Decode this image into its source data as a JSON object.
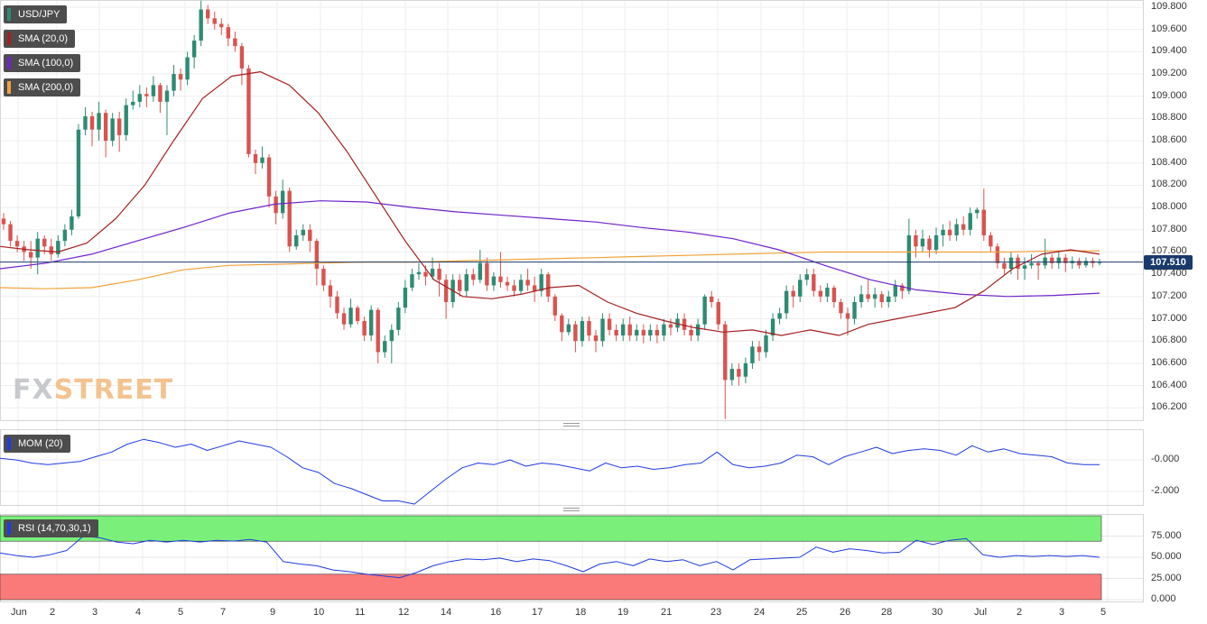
{
  "instrument": "USD/JPY",
  "watermark": {
    "part1": "FX",
    "part2": "STREET"
  },
  "indicators": {
    "sma20": {
      "label": "SMA (20,0)",
      "color": "#a51f1f"
    },
    "sma100": {
      "label": "SMA (100,0)",
      "color": "#6f23c9"
    },
    "sma200": {
      "label": "SMA (200,0)",
      "color": "#f0a13a"
    },
    "mom": {
      "label": "MOM (20)",
      "color": "#1f3be0"
    },
    "rsi": {
      "label": "RSI (14,70,30,1)",
      "color": "#1f3be0"
    }
  },
  "last_price": "107.510",
  "colors": {
    "up": "#2e8b73",
    "down": "#d9534f",
    "price_line": "#1a3a6b",
    "rsi_over": "#7af07a",
    "rsi_under": "#fa7a7a"
  },
  "chart_data": {
    "type": "candlestick",
    "price_axis": {
      "ticks": [
        "109.800",
        "109.600",
        "109.400",
        "109.200",
        "109.000",
        "108.800",
        "108.600",
        "108.400",
        "108.200",
        "108.000",
        "107.800",
        "107.600",
        "107.400",
        "107.200",
        "107.000",
        "106.800",
        "106.600",
        "106.400",
        "106.200"
      ]
    },
    "mom_axis": {
      "ticks": [
        "-0.000",
        "-2.000"
      ]
    },
    "rsi_axis": {
      "ticks": [
        "75.000",
        "50.000",
        "25.000",
        "0.000"
      ]
    },
    "x_labels": [
      "Jun",
      "2",
      "3",
      "4",
      "5",
      "7",
      "9",
      "10",
      "11",
      "12",
      "14",
      "16",
      "17",
      "18",
      "19",
      "21",
      "23",
      "24",
      "25",
      "26",
      "28",
      "30",
      "Jul",
      "2",
      "3",
      "5"
    ],
    "candles": [
      [
        107.9,
        107.85,
        107.95,
        107.8
      ],
      [
        107.85,
        107.7,
        107.88,
        107.65
      ],
      [
        107.7,
        107.65,
        107.75,
        107.6
      ],
      [
        107.65,
        107.6,
        107.7,
        107.52
      ],
      [
        107.6,
        107.55,
        107.7,
        107.45
      ],
      [
        107.55,
        107.72,
        107.78,
        107.4
      ],
      [
        107.72,
        107.65,
        107.75,
        107.58
      ],
      [
        107.65,
        107.58,
        107.72,
        107.52
      ],
      [
        107.58,
        107.7,
        107.75,
        107.55
      ],
      [
        107.7,
        107.8,
        107.85,
        107.65
      ],
      [
        107.8,
        107.92,
        107.98,
        107.75
      ],
      [
        107.92,
        108.7,
        108.75,
        107.9
      ],
      [
        108.7,
        108.82,
        108.9,
        108.65
      ],
      [
        108.82,
        108.7,
        108.86,
        108.55
      ],
      [
        108.7,
        108.85,
        108.95,
        108.6
      ],
      [
        108.85,
        108.6,
        108.88,
        108.45
      ],
      [
        108.6,
        108.8,
        108.85,
        108.55
      ],
      [
        108.8,
        108.65,
        108.86,
        108.5
      ],
      [
        108.65,
        108.92,
        108.98,
        108.6
      ],
      [
        108.92,
        108.95,
        109.05,
        108.88
      ],
      [
        108.95,
        109.02,
        109.1,
        108.9
      ],
      [
        109.02,
        109.0,
        109.08,
        108.9
      ],
      [
        109.0,
        109.1,
        109.18,
        108.95
      ],
      [
        109.1,
        108.95,
        109.12,
        108.85
      ],
      [
        108.95,
        109.05,
        109.1,
        108.65
      ],
      [
        109.05,
        109.2,
        109.28,
        109.0
      ],
      [
        109.2,
        109.15,
        109.25,
        109.05
      ],
      [
        109.15,
        109.35,
        109.4,
        109.1
      ],
      [
        109.35,
        109.5,
        109.55,
        109.25
      ],
      [
        109.5,
        109.78,
        109.86,
        109.45
      ],
      [
        109.78,
        109.7,
        109.82,
        109.65
      ],
      [
        109.7,
        109.65,
        109.76,
        109.6
      ],
      [
        109.65,
        109.62,
        109.7,
        109.55
      ],
      [
        109.62,
        109.52,
        109.65,
        109.45
      ],
      [
        109.52,
        109.45,
        109.58,
        109.4
      ],
      [
        109.45,
        109.25,
        109.48,
        109.1
      ],
      [
        109.25,
        108.48,
        109.28,
        108.45
      ],
      [
        108.48,
        108.4,
        108.52,
        108.3
      ],
      [
        108.4,
        108.45,
        108.55,
        108.35
      ],
      [
        108.45,
        108.1,
        108.48,
        108.0
      ],
      [
        108.1,
        107.95,
        108.15,
        107.85
      ],
      [
        107.95,
        108.15,
        108.25,
        107.9
      ],
      [
        108.15,
        107.65,
        108.18,
        107.6
      ],
      [
        107.65,
        107.75,
        107.8,
        107.62
      ],
      [
        107.75,
        107.8,
        107.85,
        107.7
      ],
      [
        107.8,
        107.7,
        107.85,
        107.6
      ],
      [
        107.7,
        107.45,
        107.72,
        107.3
      ],
      [
        107.45,
        107.3,
        107.48,
        107.25
      ],
      [
        107.3,
        107.2,
        107.35,
        107.1
      ],
      [
        107.2,
        107.05,
        107.25,
        107.0
      ],
      [
        107.05,
        106.95,
        107.1,
        106.9
      ],
      [
        106.95,
        107.1,
        107.18,
        106.92
      ],
      [
        107.1,
        106.98,
        107.12,
        106.95
      ],
      [
        106.98,
        106.85,
        107.02,
        106.8
      ],
      [
        106.85,
        107.08,
        107.12,
        106.8
      ],
      [
        107.08,
        106.7,
        107.1,
        106.6
      ],
      [
        106.7,
        106.8,
        106.85,
        106.65
      ],
      [
        106.8,
        106.9,
        106.95,
        106.6
      ],
      [
        106.9,
        107.1,
        107.15,
        106.85
      ],
      [
        107.1,
        107.28,
        107.35,
        107.05
      ],
      [
        107.28,
        107.4,
        107.45,
        107.25
      ],
      [
        107.4,
        107.42,
        107.5,
        107.35
      ],
      [
        107.42,
        107.38,
        107.48,
        107.3
      ],
      [
        107.38,
        107.45,
        107.55,
        107.35
      ],
      [
        107.45,
        107.35,
        107.5,
        107.2
      ],
      [
        107.35,
        107.15,
        107.4,
        107.0
      ],
      [
        107.15,
        107.35,
        107.4,
        107.1
      ],
      [
        107.35,
        107.25,
        107.4,
        107.2
      ],
      [
        107.25,
        107.4,
        107.45,
        107.2
      ],
      [
        107.4,
        107.35,
        107.45,
        107.3
      ],
      [
        107.35,
        107.5,
        107.62,
        107.32
      ],
      [
        107.5,
        107.3,
        107.55,
        107.25
      ],
      [
        107.3,
        107.38,
        107.42,
        107.25
      ],
      [
        107.38,
        107.33,
        107.6,
        107.28
      ],
      [
        107.33,
        107.3,
        107.38,
        107.25
      ],
      [
        107.3,
        107.25,
        107.35,
        107.2
      ],
      [
        107.25,
        107.35,
        107.4,
        107.22
      ],
      [
        107.35,
        107.3,
        107.45,
        107.25
      ],
      [
        107.3,
        107.25,
        107.38,
        107.15
      ],
      [
        107.25,
        107.4,
        107.45,
        107.2
      ],
      [
        107.4,
        107.2,
        107.42,
        107.15
      ],
      [
        107.2,
        107.03,
        107.22,
        106.98
      ],
      [
        107.03,
        106.88,
        107.05,
        106.8
      ],
      [
        106.88,
        106.95,
        107.0,
        106.85
      ],
      [
        106.95,
        106.8,
        106.98,
        106.7
      ],
      [
        106.8,
        106.98,
        107.02,
        106.75
      ],
      [
        106.98,
        106.85,
        107.02,
        106.8
      ],
      [
        106.85,
        106.8,
        106.9,
        106.7
      ],
      [
        106.8,
        107.0,
        107.05,
        106.75
      ],
      [
        107.0,
        106.9,
        107.05,
        106.85
      ],
      [
        106.9,
        106.85,
        106.95,
        106.8
      ],
      [
        106.85,
        106.95,
        107.0,
        106.8
      ],
      [
        106.95,
        106.85,
        107.02,
        106.8
      ],
      [
        106.85,
        106.9,
        106.95,
        106.8
      ],
      [
        106.9,
        106.85,
        106.95,
        106.78
      ],
      [
        106.85,
        106.9,
        106.95,
        106.8
      ],
      [
        106.9,
        106.85,
        106.95,
        106.78
      ],
      [
        106.85,
        106.95,
        107.0,
        106.8
      ],
      [
        106.95,
        106.92,
        107.0,
        106.85
      ],
      [
        106.92,
        107.0,
        107.05,
        106.88
      ],
      [
        107.0,
        106.9,
        107.05,
        106.85
      ],
      [
        106.9,
        106.85,
        106.95,
        106.8
      ],
      [
        106.85,
        106.95,
        107.0,
        106.8
      ],
      [
        106.95,
        107.2,
        107.22,
        106.9
      ],
      [
        107.2,
        107.15,
        107.25,
        107.1
      ],
      [
        107.15,
        106.95,
        107.18,
        106.9
      ],
      [
        106.95,
        106.45,
        106.98,
        106.1
      ],
      [
        106.45,
        106.55,
        106.6,
        106.4
      ],
      [
        106.55,
        106.48,
        106.6,
        106.4
      ],
      [
        106.48,
        106.6,
        106.65,
        106.42
      ],
      [
        106.6,
        106.75,
        106.8,
        106.55
      ],
      [
        106.75,
        106.7,
        106.8,
        106.62
      ],
      [
        106.7,
        106.85,
        106.9,
        106.65
      ],
      [
        106.85,
        107.0,
        107.05,
        106.8
      ],
      [
        107.0,
        107.05,
        107.1,
        106.95
      ],
      [
        107.05,
        107.25,
        107.3,
        107.0
      ],
      [
        107.25,
        107.2,
        107.3,
        107.1
      ],
      [
        107.2,
        107.35,
        107.4,
        107.15
      ],
      [
        107.35,
        107.4,
        107.45,
        107.3
      ],
      [
        107.4,
        107.25,
        107.45,
        107.2
      ],
      [
        107.25,
        107.2,
        107.3,
        107.15
      ],
      [
        107.2,
        107.28,
        107.32,
        107.15
      ],
      [
        107.28,
        107.15,
        107.3,
        107.1
      ],
      [
        107.15,
        107.05,
        107.18,
        107.0
      ],
      [
        107.05,
        107.0,
        107.1,
        106.85
      ],
      [
        107.0,
        107.15,
        107.2,
        106.95
      ],
      [
        107.15,
        107.22,
        107.3,
        107.1
      ],
      [
        107.22,
        107.18,
        107.35,
        107.15
      ],
      [
        107.18,
        107.22,
        107.28,
        107.1
      ],
      [
        107.22,
        107.15,
        107.25,
        107.1
      ],
      [
        107.15,
        107.2,
        107.25,
        107.1
      ],
      [
        107.2,
        107.3,
        107.35,
        107.15
      ],
      [
        107.3,
        107.25,
        107.32,
        107.18
      ],
      [
        107.25,
        107.75,
        107.9,
        107.22
      ],
      [
        107.75,
        107.65,
        107.8,
        107.55
      ],
      [
        107.65,
        107.72,
        107.8,
        107.6
      ],
      [
        107.72,
        107.62,
        107.75,
        107.55
      ],
      [
        107.62,
        107.75,
        107.82,
        107.58
      ],
      [
        107.75,
        107.8,
        107.85,
        107.65
      ],
      [
        107.8,
        107.75,
        107.88,
        107.7
      ],
      [
        107.75,
        107.85,
        107.9,
        107.7
      ],
      [
        107.85,
        107.8,
        107.92,
        107.75
      ],
      [
        107.8,
        107.95,
        108.0,
        107.75
      ],
      [
        107.95,
        107.98,
        108.0,
        107.9
      ],
      [
        107.98,
        107.75,
        108.17,
        107.7
      ],
      [
        107.75,
        107.65,
        107.78,
        107.6
      ],
      [
        107.65,
        107.5,
        107.68,
        107.45
      ],
      [
        107.5,
        107.45,
        107.55,
        107.4
      ],
      [
        107.45,
        107.55,
        107.6,
        107.4
      ],
      [
        107.55,
        107.45,
        107.58,
        107.35
      ],
      [
        107.45,
        107.48,
        107.55,
        107.35
      ],
      [
        107.48,
        107.5,
        107.58,
        107.45
      ],
      [
        107.5,
        107.48,
        107.52,
        107.35
      ],
      [
        107.48,
        107.55,
        107.72,
        107.45
      ],
      [
        107.55,
        107.5,
        107.58,
        107.45
      ],
      [
        107.5,
        107.55,
        107.6,
        107.45
      ],
      [
        107.55,
        107.5,
        107.58,
        107.42
      ],
      [
        107.5,
        107.52,
        107.56,
        107.45
      ],
      [
        107.52,
        107.48,
        107.55,
        107.45
      ],
      [
        107.48,
        107.52,
        107.55,
        107.46
      ],
      [
        107.52,
        107.5,
        107.55,
        107.46
      ],
      [
        107.5,
        107.51,
        107.54,
        107.48
      ]
    ],
    "sma20": [
      107.65,
      107.62,
      107.6,
      107.68,
      107.9,
      108.2,
      108.6,
      108.98,
      109.18,
      109.22,
      109.1,
      108.85,
      108.5,
      108.1,
      107.7,
      107.35,
      107.2,
      107.18,
      107.22,
      107.28,
      107.3,
      107.15,
      107.05,
      106.98,
      106.92,
      106.88,
      106.9,
      106.85,
      106.9,
      106.85,
      106.95,
      107.0,
      107.05,
      107.1,
      107.25,
      107.45,
      107.58,
      107.62,
      107.58
    ],
    "sma100": [
      107.45,
      107.5,
      107.58,
      107.7,
      107.82,
      107.95,
      108.03,
      108.06,
      108.05,
      108.0,
      107.96,
      107.93,
      107.9,
      107.87,
      107.82,
      107.78,
      107.72,
      107.62,
      107.48,
      107.35,
      107.26,
      107.22,
      107.2,
      107.21,
      107.23
    ],
    "sma200": [
      107.28,
      107.27,
      107.28,
      107.35,
      107.44,
      107.48,
      107.49,
      107.5,
      107.51,
      107.51,
      107.52,
      107.53,
      107.54,
      107.55,
      107.56,
      107.57,
      107.58,
      107.59,
      107.6,
      107.6,
      107.6,
      107.6,
      107.6,
      107.61,
      107.61
    ],
    "mom": [
      0.1,
      0.0,
      -0.2,
      -0.3,
      -0.2,
      -0.1,
      0.2,
      0.5,
      1.0,
      1.3,
      1.1,
      0.8,
      1.0,
      0.6,
      0.9,
      1.2,
      1.0,
      0.8,
      0.2,
      -0.5,
      -0.8,
      -1.5,
      -1.8,
      -2.2,
      -2.6,
      -2.6,
      -2.8,
      -2.0,
      -1.2,
      -0.5,
      -0.2,
      -0.3,
      0.0,
      -0.4,
      -0.2,
      -0.3,
      -0.5,
      -0.7,
      -0.2,
      -0.5,
      -0.4,
      -0.6,
      -0.5,
      -0.3,
      -0.2,
      0.5,
      -0.3,
      -0.5,
      -0.4,
      -0.2,
      0.3,
      0.2,
      -0.3,
      0.2,
      0.5,
      0.8,
      0.4,
      0.6,
      0.7,
      0.6,
      0.3,
      0.9,
      0.5,
      0.7,
      0.4,
      0.3,
      0.2,
      -0.2,
      -0.3,
      -0.3
    ],
    "rsi": [
      55,
      52,
      50,
      53,
      58,
      75,
      73,
      68,
      66,
      70,
      68,
      70,
      68,
      70,
      69,
      71,
      68,
      45,
      42,
      40,
      35,
      33,
      30,
      28,
      26,
      32,
      40,
      45,
      48,
      47,
      49,
      45,
      48,
      46,
      40,
      33,
      42,
      45,
      40,
      48,
      45,
      47,
      40,
      45,
      35,
      47,
      48,
      49,
      50,
      62,
      56,
      60,
      58,
      55,
      56,
      70,
      65,
      70,
      72,
      53,
      50,
      52,
      51,
      52,
      51,
      52,
      50
    ]
  }
}
